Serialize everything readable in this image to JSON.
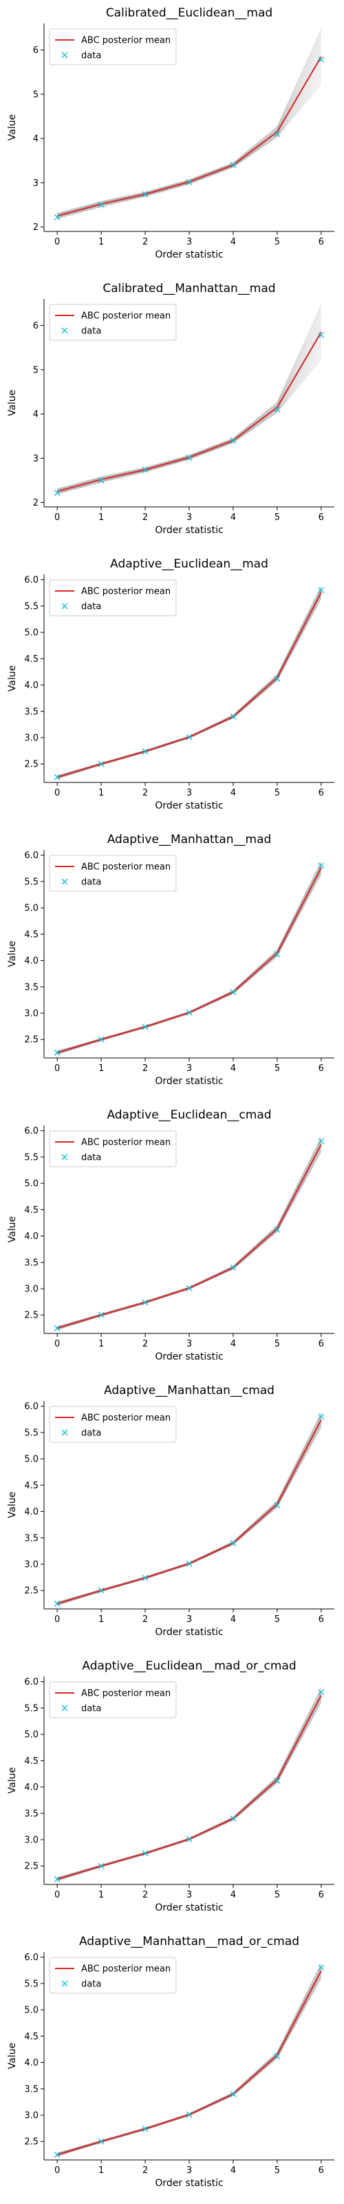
{
  "colors": {
    "mean_line": "#d62728",
    "data_marker": "#17becf",
    "posterior_samples": "#7f7f7f"
  },
  "legend_labels": {
    "mean": "ABC posterior mean",
    "data": "data"
  },
  "chart_data": [
    {
      "type": "line",
      "title": "Calibrated__Euclidean__mad",
      "xlabel": "Order statistic",
      "ylabel": "Value",
      "x": [
        0,
        1,
        2,
        3,
        4,
        5,
        6
      ],
      "xticks": [
        "0",
        "1",
        "2",
        "3",
        "4",
        "5",
        "6"
      ],
      "ylim": [
        1.9,
        6.6
      ],
      "yticks": [
        2,
        3,
        4,
        5,
        6
      ],
      "legend": "top-left",
      "series": [
        {
          "name": "ABC posterior mean",
          "style": "line",
          "values": [
            2.25,
            2.52,
            2.74,
            3.02,
            3.4,
            4.15,
            5.85
          ]
        },
        {
          "name": "data",
          "style": "marker-x",
          "values": [
            2.22,
            2.5,
            2.74,
            3.01,
            3.4,
            4.1,
            5.78
          ]
        }
      ],
      "posterior_spread": [
        0.06,
        0.06,
        0.05,
        0.05,
        0.05,
        0.12,
        0.62
      ]
    },
    {
      "type": "line",
      "title": "Calibrated__Manhattan__mad",
      "xlabel": "Order statistic",
      "ylabel": "Value",
      "x": [
        0,
        1,
        2,
        3,
        4,
        5,
        6
      ],
      "xticks": [
        "0",
        "1",
        "2",
        "3",
        "4",
        "5",
        "6"
      ],
      "ylim": [
        1.9,
        6.6
      ],
      "yticks": [
        2,
        3,
        4,
        5,
        6
      ],
      "legend": "top-left",
      "series": [
        {
          "name": "ABC posterior mean",
          "style": "line",
          "values": [
            2.25,
            2.52,
            2.74,
            3.02,
            3.4,
            4.15,
            5.85
          ]
        },
        {
          "name": "data",
          "style": "marker-x",
          "values": [
            2.22,
            2.5,
            2.74,
            3.01,
            3.4,
            4.1,
            5.78
          ]
        }
      ],
      "posterior_spread": [
        0.06,
        0.06,
        0.05,
        0.05,
        0.05,
        0.12,
        0.62
      ]
    },
    {
      "type": "line",
      "title": "Adaptive__Euclidean__mad",
      "xlabel": "Order statistic",
      "ylabel": "Value",
      "x": [
        0,
        1,
        2,
        3,
        4,
        5,
        6
      ],
      "xticks": [
        "0",
        "1",
        "2",
        "3",
        "4",
        "5",
        "6"
      ],
      "ylim": [
        2.15,
        6.1
      ],
      "yticks": [
        2.5,
        3.0,
        3.5,
        4.0,
        4.5,
        5.0,
        5.5,
        6.0
      ],
      "legend": "top-left",
      "series": [
        {
          "name": "ABC posterior mean",
          "style": "line",
          "values": [
            2.25,
            2.5,
            2.74,
            3.01,
            3.4,
            4.14,
            5.76
          ]
        },
        {
          "name": "data",
          "style": "marker-x",
          "values": [
            2.25,
            2.5,
            2.74,
            3.01,
            3.4,
            4.12,
            5.8
          ]
        }
      ],
      "posterior_spread": [
        0.03,
        0.02,
        0.02,
        0.02,
        0.03,
        0.06,
        0.12
      ]
    },
    {
      "type": "line",
      "title": "Adaptive__Manhattan__mad",
      "xlabel": "Order statistic",
      "ylabel": "Value",
      "x": [
        0,
        1,
        2,
        3,
        4,
        5,
        6
      ],
      "xticks": [
        "0",
        "1",
        "2",
        "3",
        "4",
        "5",
        "6"
      ],
      "ylim": [
        2.15,
        6.1
      ],
      "yticks": [
        2.5,
        3.0,
        3.5,
        4.0,
        4.5,
        5.0,
        5.5,
        6.0
      ],
      "legend": "top-left",
      "series": [
        {
          "name": "ABC posterior mean",
          "style": "line",
          "values": [
            2.25,
            2.5,
            2.74,
            3.01,
            3.4,
            4.14,
            5.76
          ]
        },
        {
          "name": "data",
          "style": "marker-x",
          "values": [
            2.25,
            2.5,
            2.74,
            3.01,
            3.4,
            4.12,
            5.8
          ]
        }
      ],
      "posterior_spread": [
        0.03,
        0.02,
        0.02,
        0.02,
        0.03,
        0.06,
        0.12
      ]
    },
    {
      "type": "line",
      "title": "Adaptive__Euclidean__cmad",
      "xlabel": "Order statistic",
      "ylabel": "Value",
      "x": [
        0,
        1,
        2,
        3,
        4,
        5,
        6
      ],
      "xticks": [
        "0",
        "1",
        "2",
        "3",
        "4",
        "5",
        "6"
      ],
      "ylim": [
        2.15,
        6.1
      ],
      "yticks": [
        2.5,
        3.0,
        3.5,
        4.0,
        4.5,
        5.0,
        5.5,
        6.0
      ],
      "legend": "top-left",
      "series": [
        {
          "name": "ABC posterior mean",
          "style": "line",
          "values": [
            2.25,
            2.5,
            2.74,
            3.01,
            3.4,
            4.14,
            5.74
          ]
        },
        {
          "name": "data",
          "style": "marker-x",
          "values": [
            2.25,
            2.5,
            2.74,
            3.01,
            3.4,
            4.12,
            5.8
          ]
        }
      ],
      "posterior_spread": [
        0.03,
        0.02,
        0.02,
        0.02,
        0.03,
        0.06,
        0.14
      ]
    },
    {
      "type": "line",
      "title": "Adaptive__Manhattan__cmad",
      "xlabel": "Order statistic",
      "ylabel": "Value",
      "x": [
        0,
        1,
        2,
        3,
        4,
        5,
        6
      ],
      "xticks": [
        "0",
        "1",
        "2",
        "3",
        "4",
        "5",
        "6"
      ],
      "ylim": [
        2.15,
        6.1
      ],
      "yticks": [
        2.5,
        3.0,
        3.5,
        4.0,
        4.5,
        5.0,
        5.5,
        6.0
      ],
      "legend": "top-left",
      "series": [
        {
          "name": "ABC posterior mean",
          "style": "line",
          "values": [
            2.25,
            2.5,
            2.74,
            3.01,
            3.4,
            4.14,
            5.74
          ]
        },
        {
          "name": "data",
          "style": "marker-x",
          "values": [
            2.25,
            2.5,
            2.74,
            3.01,
            3.4,
            4.12,
            5.8
          ]
        }
      ],
      "posterior_spread": [
        0.03,
        0.02,
        0.02,
        0.02,
        0.03,
        0.06,
        0.14
      ]
    },
    {
      "type": "line",
      "title": "Adaptive__Euclidean__mad_or_cmad",
      "xlabel": "Order statistic",
      "ylabel": "Value",
      "x": [
        0,
        1,
        2,
        3,
        4,
        5,
        6
      ],
      "xticks": [
        "0",
        "1",
        "2",
        "3",
        "4",
        "5",
        "6"
      ],
      "ylim": [
        2.15,
        6.1
      ],
      "yticks": [
        2.5,
        3.0,
        3.5,
        4.0,
        4.5,
        5.0,
        5.5,
        6.0
      ],
      "legend": "top-left",
      "series": [
        {
          "name": "ABC posterior mean",
          "style": "line",
          "values": [
            2.25,
            2.5,
            2.74,
            3.01,
            3.4,
            4.14,
            5.74
          ]
        },
        {
          "name": "data",
          "style": "marker-x",
          "values": [
            2.25,
            2.5,
            2.74,
            3.01,
            3.4,
            4.12,
            5.8
          ]
        }
      ],
      "posterior_spread": [
        0.03,
        0.02,
        0.02,
        0.02,
        0.03,
        0.06,
        0.14
      ]
    },
    {
      "type": "line",
      "title": "Adaptive__Manhattan__mad_or_cmad",
      "xlabel": "Order statistic",
      "ylabel": "Value",
      "x": [
        0,
        1,
        2,
        3,
        4,
        5,
        6
      ],
      "xticks": [
        "0",
        "1",
        "2",
        "3",
        "4",
        "5",
        "6"
      ],
      "ylim": [
        2.15,
        6.1
      ],
      "yticks": [
        2.5,
        3.0,
        3.5,
        4.0,
        4.5,
        5.0,
        5.5,
        6.0
      ],
      "legend": "top-left",
      "series": [
        {
          "name": "ABC posterior mean",
          "style": "line",
          "values": [
            2.25,
            2.5,
            2.74,
            3.01,
            3.4,
            4.14,
            5.74
          ]
        },
        {
          "name": "data",
          "style": "marker-x",
          "values": [
            2.25,
            2.5,
            2.74,
            3.01,
            3.4,
            4.12,
            5.8
          ]
        }
      ],
      "posterior_spread": [
        0.03,
        0.02,
        0.02,
        0.02,
        0.03,
        0.06,
        0.14
      ]
    }
  ]
}
